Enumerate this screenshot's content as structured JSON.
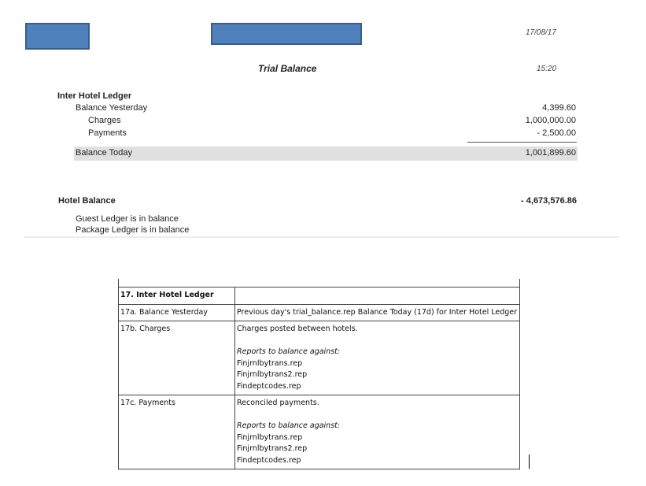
{
  "report": {
    "date": "17/08/17",
    "time": "15:20",
    "title": "Trial Balance",
    "section": "Inter Hotel Ledger",
    "rows": [
      {
        "label": "Balance Yesterday",
        "value": "4,399.60"
      },
      {
        "label": "Charges",
        "value": "1,000,000.00"
      },
      {
        "label": "Payments",
        "value": "- 2,500.00"
      }
    ],
    "balance_today": {
      "label": "Balance Today",
      "value": "1,001,899.60"
    },
    "hotel_balance": {
      "label": "Hotel Balance",
      "value": "- 4,673,576.86"
    },
    "notes": [
      "Guest Ledger is in balance",
      "Package Ledger is in balance"
    ]
  },
  "table": {
    "header": "17. Inter Hotel Ledger",
    "rows": [
      {
        "label": "17a. Balance Yesterday",
        "desc": "Previous day's trial_balance.rep Balance Today (17d) for Inter Hotel Ledger"
      },
      {
        "label": "17b. Charges",
        "desc": "Charges posted between hotels.",
        "reports_label": "Reports to balance against:",
        "reports": [
          "Finjrnlbytrans.rep",
          "Finjrnlbytrans2.rep",
          "Findeptcodes.rep"
        ]
      },
      {
        "label": "17c. Payments",
        "desc": "Reconciled payments.",
        "reports_label": "Reports to balance against:",
        "reports": [
          "Finjrnlbytrans.rep",
          "Finjrnlbytrans2.rep",
          "Findeptcodes.rep"
        ]
      }
    ]
  },
  "colors": {
    "redaction": "#4f81bd",
    "highlight_row": "#e0e0e0"
  }
}
